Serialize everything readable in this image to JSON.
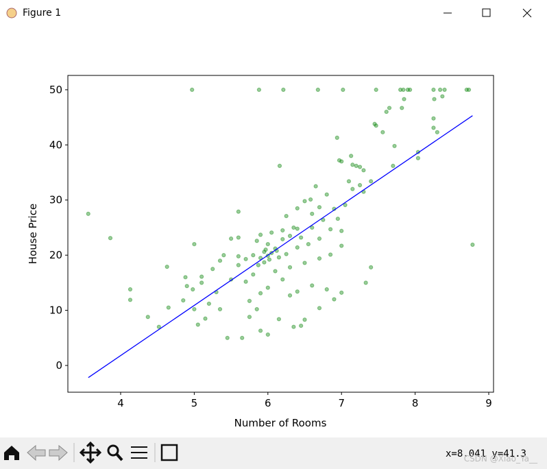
{
  "window_title": "Figure 1",
  "chart_data": {
    "type": "scatter",
    "xlabel": "Number of Rooms",
    "ylabel": "House Price",
    "xlim": [
      3.283,
      9.065
    ],
    "ylim": [
      -4.85,
      52.6
    ],
    "xticks": [
      4,
      5,
      6,
      7,
      8,
      9
    ],
    "yticks": [
      0,
      10,
      20,
      30,
      40,
      50
    ],
    "series": [
      {
        "type": "scatter",
        "color": "green",
        "x": [
          3.56,
          3.86,
          4.13,
          4.13,
          4.37,
          4.52,
          4.63,
          4.65,
          4.97,
          5.88,
          6.21,
          6.68,
          7.02,
          7.47,
          7.8,
          7.84,
          7.9,
          7.93,
          8.25,
          8.34,
          8.4,
          8.7,
          8.73,
          8.78,
          8.26,
          8.37,
          8.25,
          8.25,
          8.3,
          8.04,
          8.04,
          7.85,
          7.82,
          7.61,
          7.65,
          7.45,
          7.47,
          7.56,
          7.72,
          7.7,
          6.94,
          7.13,
          6.97,
          7.0,
          7.15,
          7.2,
          7.25,
          7.3,
          7.1,
          7.4,
          7.3,
          7.4,
          7.33,
          6.16,
          6.5,
          6.8,
          6.7,
          6.6,
          6.9,
          6.95,
          7.0,
          6.4,
          6.3,
          6.2,
          6.0,
          5.9,
          5.8,
          5.95,
          6.1,
          6.05,
          5.7,
          5.6,
          5.5,
          5.6,
          5.6,
          5.4,
          5.3,
          5.2,
          5.05,
          5.15,
          5.35,
          5.45,
          5.65,
          5.9,
          6.0,
          5.75,
          5.85,
          6.15,
          6.35,
          6.45,
          6.5,
          6.7,
          6.9,
          7.0,
          6.8,
          6.6,
          6.4,
          6.3,
          6.2,
          6.0,
          5.9,
          5.75,
          5.7,
          5.5,
          5.8,
          6.1,
          6.3,
          6.5,
          6.7,
          6.85,
          7.0,
          6.55,
          6.4,
          6.25,
          6.15,
          6.0,
          5.95,
          5.85,
          5.9,
          6.05,
          6.2,
          6.45,
          6.6,
          6.75,
          6.85,
          7.05,
          7.15,
          7.25,
          6.65,
          6.58,
          6.4,
          6.25,
          5.0,
          4.98,
          4.9,
          4.85,
          5.0,
          4.88,
          5.1,
          5.25,
          5.1,
          5.35,
          5.6,
          6.7,
          6.35,
          5.97,
          6.02,
          6.12,
          5.87
        ],
        "y": [
          27.5,
          23.1,
          13.8,
          11.9,
          8.8,
          7,
          17.9,
          10.5,
          50,
          50,
          50,
          50,
          50,
          50,
          50,
          50,
          50,
          50,
          50,
          50,
          50,
          50,
          50,
          21.9,
          48.3,
          48.8,
          44.8,
          43.1,
          42.3,
          38.7,
          37.6,
          48.3,
          46.7,
          46.0,
          46.7,
          43.8,
          43.5,
          42.3,
          39.8,
          36.2,
          41.3,
          38.0,
          37.2,
          37.0,
          36.4,
          36.2,
          36.0,
          35.4,
          33.4,
          33.4,
          31.5,
          17.8,
          15.0,
          36.2,
          29.8,
          31.0,
          28.7,
          27.5,
          28.4,
          26.6,
          24.4,
          24.8,
          23.5,
          24.5,
          22.0,
          19.5,
          20.0,
          18.7,
          21.2,
          20.4,
          19.3,
          18.2,
          23.0,
          23.2,
          27.9,
          20.0,
          13.3,
          11.2,
          7.4,
          8.5,
          10.2,
          5.0,
          5.0,
          6.3,
          5.6,
          8.8,
          10.2,
          8.4,
          7.0,
          7.2,
          8.3,
          10.4,
          12.0,
          13.2,
          13.8,
          14.5,
          13.4,
          12.7,
          15.6,
          14.1,
          13.1,
          11.7,
          15.2,
          15.6,
          16.5,
          17.1,
          17.8,
          18.6,
          19.4,
          20.1,
          21.7,
          22.0,
          21.4,
          20.2,
          19.6,
          19.9,
          20.6,
          22.6,
          23.7,
          24.1,
          22.9,
          23.2,
          25.0,
          26.4,
          24.7,
          29.1,
          32.0,
          32.7,
          32.5,
          30.1,
          28.5,
          27.1,
          22.0,
          13.8,
          14.4,
          11.8,
          10.2,
          16.0,
          16.1,
          17.5,
          15.0,
          19.0,
          19.8,
          23.0,
          25.0,
          21.0,
          19.2,
          20.8,
          18.2
        ]
      },
      {
        "type": "line",
        "color": "blue",
        "x": [
          3.561,
          8.78
        ],
        "y": [
          -2.2,
          45.3
        ]
      }
    ]
  },
  "toolbar": {
    "status": "x=8.041 y=41.3"
  },
  "watermark": "CSDN @Xiao_Ya__"
}
